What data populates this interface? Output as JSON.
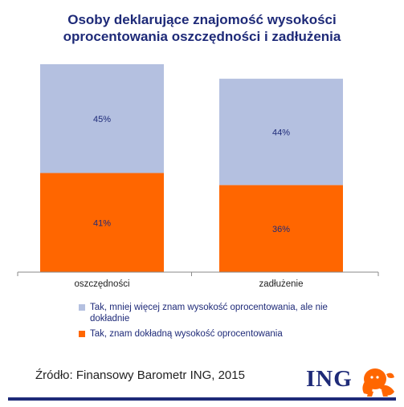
{
  "chart_data": {
    "type": "bar",
    "stacked": true,
    "title": [
      "Osoby deklarujące znajomość wysokości",
      "oprocentowania oszczędności i zadłużenia"
    ],
    "categories": [
      "oszczędności",
      "zadłużenie"
    ],
    "series": [
      {
        "name": "Tak, znam dokładną wysokość oprocentowania",
        "values": [
          41,
          36
        ],
        "labels": [
          "41%",
          "36%"
        ],
        "color": "#ff6600"
      },
      {
        "name": "Tak, mniej więcej znam wysokość oprocentowania, ale nie dokładnie",
        "values": [
          45,
          44
        ],
        "labels": [
          "45%",
          "44%"
        ],
        "color": "#b4c0e0"
      }
    ],
    "ylim": [
      0,
      86
    ],
    "grid": false,
    "legend_position": "bottom"
  },
  "legend": [
    {
      "label": "Tak, mniej więcej znam wysokość oprocentowania, ale nie dokładnie",
      "color": "#b4c0e0"
    },
    {
      "label": "Tak, znam dokładną wysokość oprocentowania",
      "color": "#ff6600"
    }
  ],
  "source": "Źródło: Finansowy Barometr ING, 2015",
  "logo": {
    "text": "ING",
    "icon": "lion-icon",
    "color": "#ff6600"
  }
}
